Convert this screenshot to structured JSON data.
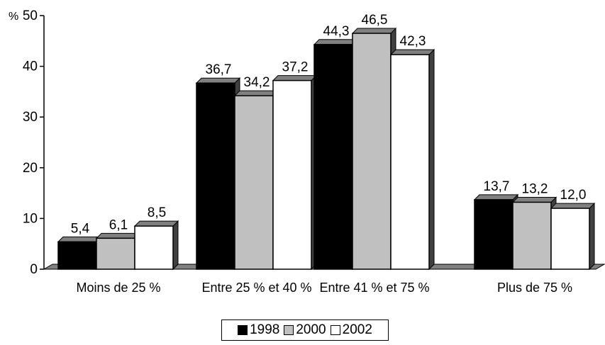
{
  "chart_data": {
    "type": "bar",
    "title": "",
    "xlabel": "",
    "ylabel": "",
    "y_unit_label": "%",
    "categories": [
      "Moins de 25 %",
      "Entre 25 % et 40 %",
      "Entre 41 % et 75 %",
      "Plus de 75 %"
    ],
    "series": [
      {
        "name": "1998",
        "color": "#000000",
        "values": [
          5.4,
          36.7,
          44.3,
          13.7
        ],
        "labels": [
          "5,4",
          "36,7",
          "44,3",
          "13,7"
        ]
      },
      {
        "name": "2000",
        "color": "#c0c0c0",
        "values": [
          6.1,
          34.2,
          46.5,
          13.2
        ],
        "labels": [
          "6,1",
          "34,2",
          "46,5",
          "13,2"
        ]
      },
      {
        "name": "2002",
        "color": "#ffffff",
        "values": [
          8.5,
          37.2,
          42.3,
          12.0
        ],
        "labels": [
          "8,5",
          "37,2",
          "42,3",
          "12,0"
        ]
      }
    ],
    "ylim": [
      0,
      50
    ],
    "yticks": [
      0,
      10,
      20,
      30,
      40,
      50
    ],
    "ytick_labels": [
      "0",
      "10",
      "20",
      "30",
      "40",
      "50"
    ],
    "grid": false,
    "legend_position": "bottom-center",
    "style": "3d-bar"
  }
}
